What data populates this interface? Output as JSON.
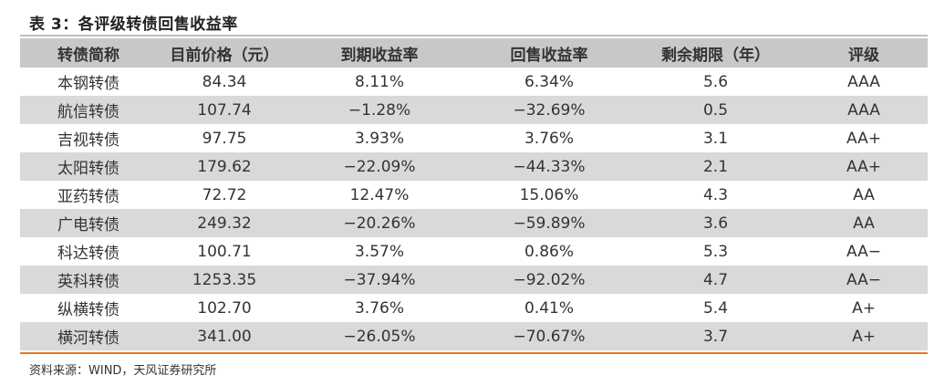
{
  "title": "表 3：各评级转债回售收益率",
  "table": {
    "headers": [
      "转债简称",
      "目前价格（元）",
      "到期收益率",
      "回售收益率",
      "剩余期限（年）",
      "评级"
    ],
    "rows": [
      [
        "本钢转债",
        "84.34",
        "8.11%",
        "6.34%",
        "5.6",
        "AAA"
      ],
      [
        "航信转债",
        "107.74",
        "−1.28%",
        "−32.69%",
        "0.5",
        "AAA"
      ],
      [
        "吉视转债",
        "97.75",
        "3.93%",
        "3.76%",
        "3.1",
        "AA+"
      ],
      [
        "太阳转债",
        "179.62",
        "−22.09%",
        "−44.33%",
        "2.1",
        "AA+"
      ],
      [
        "亚药转债",
        "72.72",
        "12.47%",
        "15.06%",
        "4.3",
        "AA"
      ],
      [
        "广电转债",
        "249.32",
        "−20.26%",
        "−59.89%",
        "3.6",
        "AA"
      ],
      [
        "科达转债",
        "100.71",
        "3.57%",
        "0.86%",
        "5.3",
        "AA−"
      ],
      [
        "英科转债",
        "1253.35",
        "−37.94%",
        "−92.02%",
        "4.7",
        "AA−"
      ],
      [
        "纵横转债",
        "102.70",
        "3.76%",
        "0.41%",
        "5.4",
        "A+"
      ],
      [
        "横河转债",
        "341.00",
        "−26.05%",
        "−70.67%",
        "3.7",
        "A+"
      ]
    ]
  },
  "source": "资料来源：WIND，天风证券研究所",
  "colors": {
    "header_bg": "#c8c8c8",
    "shaded_row_bg": "#d9d9d9",
    "accent_rule": "#e07b2e"
  }
}
